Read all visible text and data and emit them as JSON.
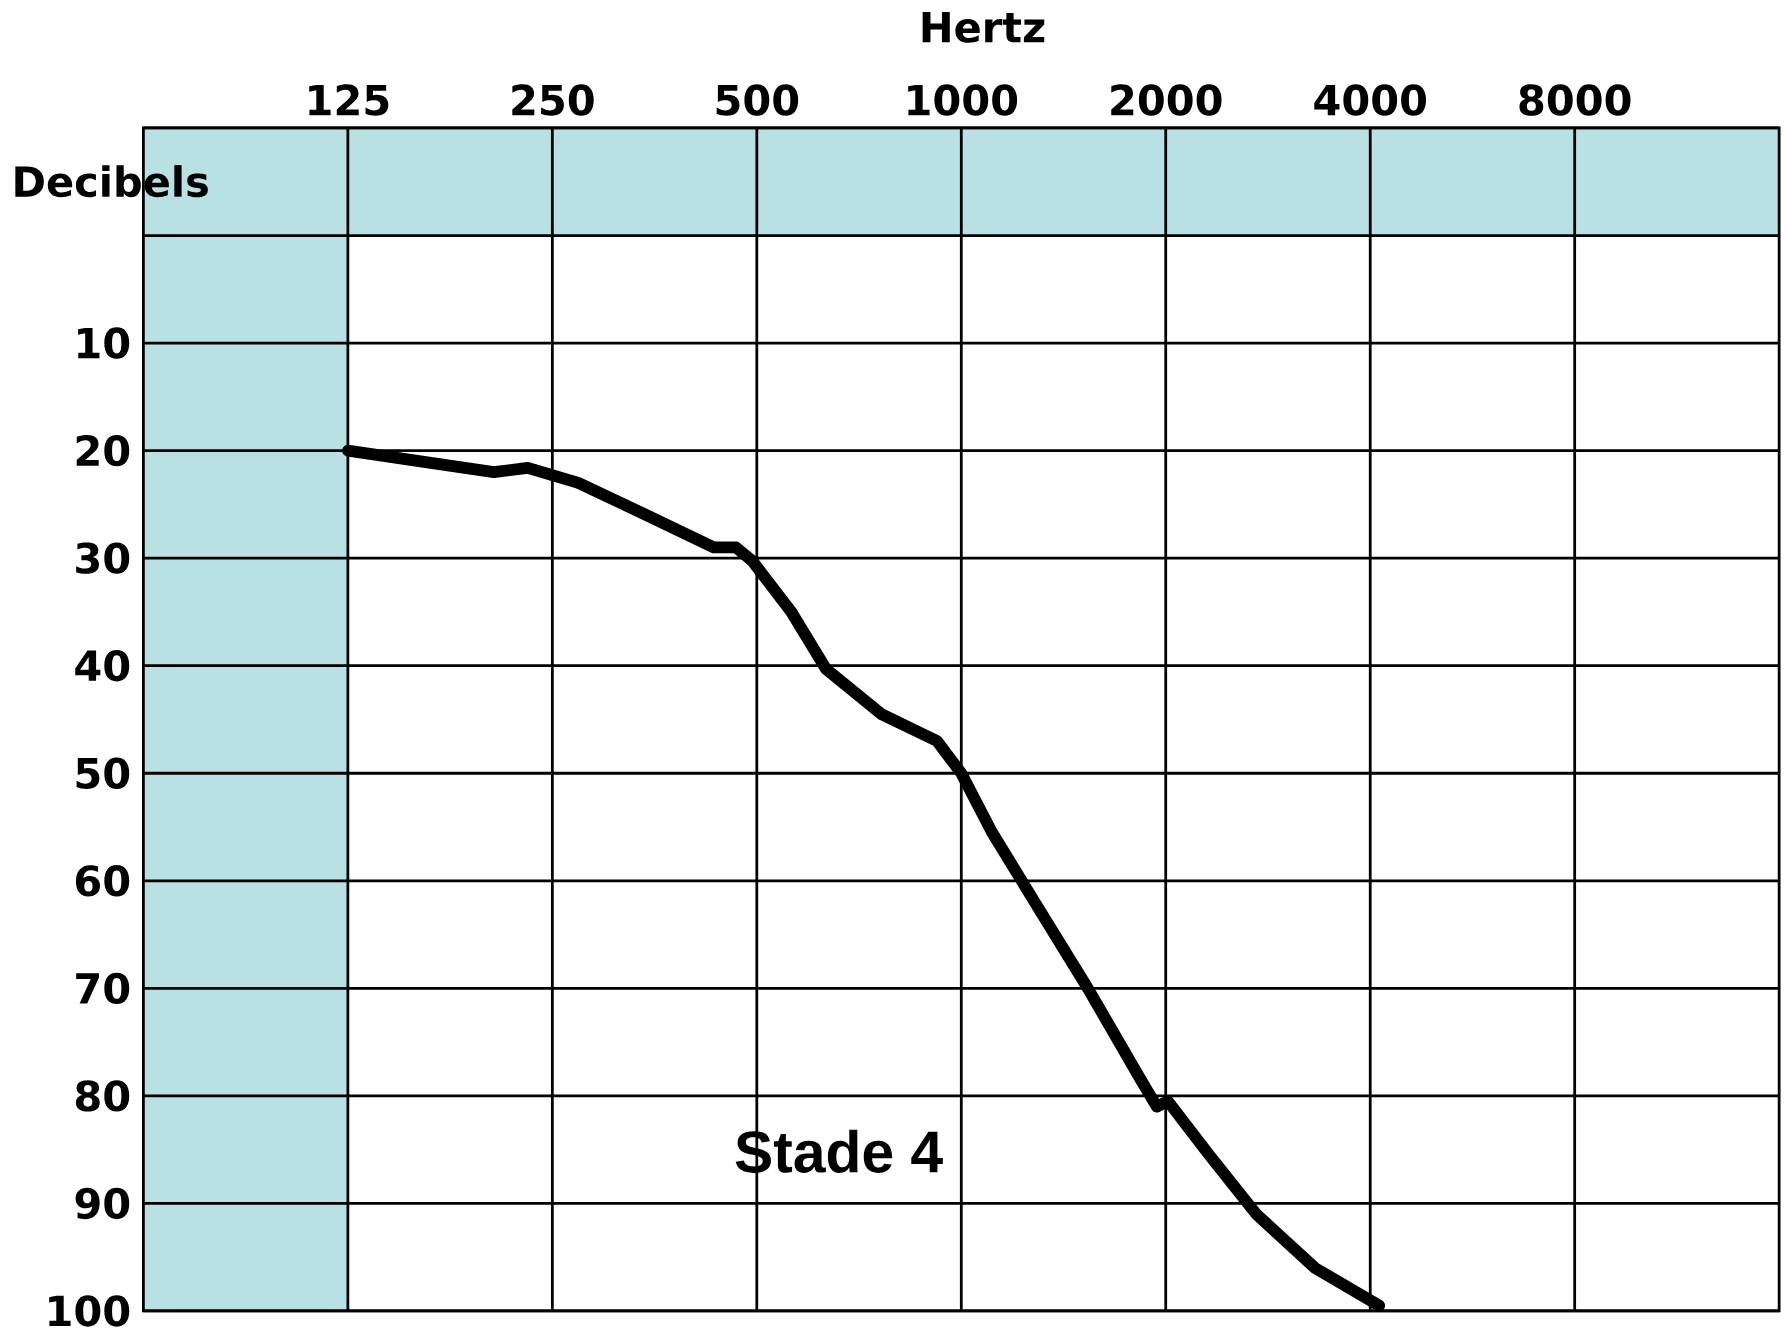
{
  "chart_data": {
    "type": "line",
    "xlabel": "Hertz",
    "ylabel": "Decibels",
    "x": [
      125,
      160,
      205,
      230,
      273,
      344,
      432,
      466,
      493,
      562,
      632,
      763,
      921,
      1000,
      1110,
      1283,
      1536,
      1838,
      1941,
      2015,
      2318,
      2719,
      3317,
      4124
    ],
    "series": [
      {
        "color": "#000000",
        "values": [
          20,
          21,
          22,
          21.6,
          23,
          26,
          29,
          29,
          30.3,
          35,
          40.3,
          44.5,
          47,
          50,
          55.5,
          62,
          70,
          78.5,
          81,
          80.5,
          85.5,
          91,
          96,
          99.5
        ]
      }
    ],
    "log": "x",
    "xlim": [
      62.5,
      16000
    ],
    "xticks": [
      125,
      250,
      500,
      1000,
      2000,
      4000,
      8000
    ],
    "ylim": [
      100,
      -10
    ],
    "yticks": [
      {
        "value": -10,
        "label": null
      },
      {
        "value": 0,
        "label": null
      },
      10,
      20,
      30,
      40,
      50,
      60,
      70,
      80,
      90,
      100
    ],
    "grid": true,
    "marker": "none",
    "line_style": "solid",
    "bands": [
      {
        "axis": "x",
        "from": 62.5,
        "to": 125,
        "color": "#b9e0e3"
      },
      {
        "axis": "y",
        "from": -10,
        "to": 0,
        "color": "#b9e0e3"
      }
    ],
    "annotations": [
      "Stade 4"
    ]
  }
}
